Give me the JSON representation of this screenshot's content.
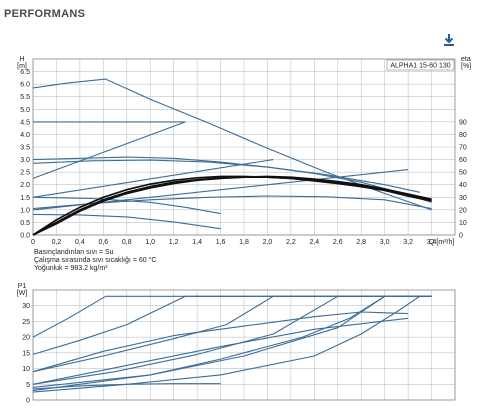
{
  "page": {
    "title": "PERFORMANS",
    "download_icon": "download-arrow-icon"
  },
  "colors": {
    "curve": "#3b6d99",
    "efficiency": "#111111",
    "grid": "#bfc4c8"
  },
  "chart_data": [
    {
      "type": "line",
      "model_label": "ALPHA1 15-60 130",
      "ylabel": "H\n[m]",
      "ylabel_right": "eta\n[%]",
      "xlabel": "Q [m³/h]",
      "xlim": [
        0,
        3.6
      ],
      "ylim": [
        0,
        7.0
      ],
      "y2lim": [
        0,
        140
      ],
      "grid": true,
      "x_ticks": [
        "0",
        "0,2",
        "0,4",
        "0,6",
        "0,8",
        "1,0",
        "1,2",
        "1,4",
        "1,6",
        "1,8",
        "2,0",
        "2,2",
        "2,4",
        "2,6",
        "2,8",
        "3,0",
        "3,2",
        "3,4"
      ],
      "y_ticks": [
        "0.0",
        "0.5",
        "1.0",
        "1.5",
        "2.0",
        "2.5",
        "3.0",
        "3.5",
        "4.0",
        "4.5",
        "5.0",
        "5.5",
        "6.0",
        "6.5"
      ],
      "y2_ticks": [
        "0",
        "10",
        "20",
        "30",
        "40",
        "50",
        "60",
        "70",
        "80",
        "90"
      ],
      "notes": [
        "Basınçlandırılan sıvı = Su",
        "Çalışma sırasında sıvı sıcaklığı = 60 °C",
        "Yoğunluk = 983.2 kg/m³"
      ],
      "series": [
        {
          "x": [
            0,
            0.3,
            0.62,
            1.0,
            1.5,
            2.0,
            2.5,
            3.0,
            3.4
          ],
          "y": [
            5.85,
            6.05,
            6.2,
            5.4,
            4.45,
            3.45,
            2.5,
            1.65,
            1.0
          ]
        },
        {
          "x": [
            0,
            0.5,
            1.0,
            1.3
          ],
          "y": [
            4.5,
            4.5,
            4.5,
            4.5
          ]
        },
        {
          "x": [
            0,
            0.4,
            0.8,
            1.2,
            1.6,
            2.0,
            2.4,
            2.8,
            3.2,
            3.4
          ],
          "y": [
            3.0,
            3.05,
            3.1,
            3.05,
            2.9,
            2.7,
            2.45,
            2.1,
            1.6,
            1.3
          ]
        },
        {
          "x": [
            0,
            0.5,
            1.0,
            1.5,
            2.0,
            2.5,
            3.0,
            3.3
          ],
          "y": [
            2.85,
            2.95,
            2.98,
            2.9,
            2.7,
            2.4,
            2.0,
            1.7
          ]
        },
        {
          "x": [
            0,
            0.5,
            1.0,
            1.5,
            2.0,
            2.5,
            3.0,
            3.4
          ],
          "y": [
            1.05,
            1.25,
            1.4,
            1.5,
            1.55,
            1.52,
            1.4,
            1.05
          ]
        },
        {
          "x": [
            0,
            0.5,
            1.0,
            1.3,
            1.6
          ],
          "y": [
            1.5,
            1.45,
            1.3,
            1.1,
            0.85
          ]
        },
        {
          "x": [
            0,
            0.4,
            0.8,
            1.2,
            1.6
          ],
          "y": [
            0.82,
            0.8,
            0.72,
            0.52,
            0.25
          ]
        },
        {
          "x": [
            0,
            1.3
          ],
          "y": [
            2.25,
            4.5
          ]
        },
        {
          "x": [
            0,
            2.05
          ],
          "y": [
            1.5,
            3.0
          ]
        },
        {
          "x": [
            0,
            3.2
          ],
          "y": [
            1.0,
            2.6
          ]
        }
      ],
      "efficiency_series": [
        {
          "x": [
            0,
            0.2,
            0.4,
            0.6,
            0.8,
            1.0,
            1.2,
            1.4,
            1.6,
            1.8,
            2.0,
            2.2,
            2.4,
            2.6,
            2.8,
            3.0,
            3.2,
            3.4
          ],
          "y": [
            0,
            12,
            22,
            30,
            36,
            40.5,
            43.5,
            45.5,
            46.5,
            46.5,
            46,
            45,
            43,
            41,
            38.5,
            35.5,
            31,
            27
          ]
        },
        {
          "x": [
            0,
            0.2,
            0.4,
            0.6,
            0.8,
            1.0,
            1.2,
            1.4,
            1.6,
            1.8,
            2.0,
            2.2,
            2.4,
            2.6,
            2.8,
            3.0,
            3.2,
            3.4
          ],
          "y": [
            0,
            10,
            20,
            28,
            34,
            38.5,
            42,
            44,
            45.5,
            46,
            46,
            45,
            43.5,
            41.5,
            39,
            36,
            32,
            28
          ]
        },
        {
          "x": [
            0,
            0.2,
            0.4,
            0.6,
            0.8,
            1.0,
            1.2,
            1.4,
            1.6,
            1.8,
            2.0,
            2.2,
            2.4,
            2.6,
            2.8,
            3.0,
            3.2,
            3.4
          ],
          "y": [
            0,
            9,
            19,
            27,
            33,
            37.5,
            41,
            43.5,
            45,
            46,
            46.5,
            46,
            44.5,
            42.5,
            40,
            36.5,
            32.5,
            28.5
          ]
        }
      ]
    },
    {
      "type": "line",
      "ylabel": "P1\n[W]",
      "xlim": [
        0,
        3.6
      ],
      "ylim": [
        0,
        35
      ],
      "grid": true,
      "y_ticks": [
        "0",
        "5",
        "10",
        "15",
        "20",
        "25",
        "30"
      ],
      "series": [
        {
          "x": [
            0,
            0.3,
            0.62,
            3.4
          ],
          "y": [
            20,
            26,
            33,
            33
          ]
        },
        {
          "x": [
            0,
            0.4,
            0.8,
            1.3,
            3.4
          ],
          "y": [
            14.5,
            19,
            24,
            33,
            33
          ]
        },
        {
          "x": [
            0,
            0.6,
            1.2,
            1.65,
            2.05,
            3.4
          ],
          "y": [
            9,
            14,
            19.5,
            24,
            33,
            33
          ]
        },
        {
          "x": [
            0,
            0.7,
            1.4,
            2.05,
            2.6,
            3.4
          ],
          "y": [
            5,
            9,
            14.5,
            21,
            33,
            33
          ]
        },
        {
          "x": [
            0,
            1.0,
            1.8,
            2.6,
            3.0,
            3.4
          ],
          "y": [
            4,
            8,
            14,
            23,
            33,
            33
          ]
        },
        {
          "x": [
            0,
            1.0,
            1.6,
            2.3,
            2.7,
            3.0,
            3.4
          ],
          "y": [
            3,
            8,
            13,
            20,
            26,
            33,
            33
          ]
        },
        {
          "x": [
            0,
            0.8,
            1.6,
            2.4,
            2.8,
            3.1,
            3.3
          ],
          "y": [
            2.5,
            5,
            8,
            14,
            21,
            28,
            33
          ]
        },
        {
          "x": [
            0,
            0.6,
            1.2,
            1.8,
            2.4,
            2.8,
            3.2
          ],
          "y": [
            9,
            15.5,
            20.5,
            23.5,
            26.5,
            28,
            27.5
          ]
        },
        {
          "x": [
            0,
            0.8,
            1.6,
            2.4,
            3.2
          ],
          "y": [
            5,
            11,
            17,
            22.5,
            26
          ]
        },
        {
          "x": [
            0,
            0.4,
            0.8,
            1.2,
            1.6
          ],
          "y": [
            3.5,
            4.5,
            5,
            5.2,
            5.2
          ]
        }
      ]
    }
  ]
}
